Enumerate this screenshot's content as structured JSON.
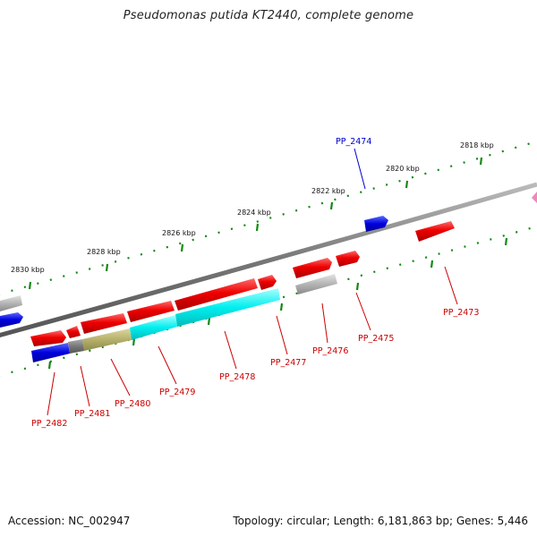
{
  "title": "Pseudomonas putida KT2440, complete genome",
  "footer": {
    "accession": "Accession: NC_002947",
    "summary": "Topology: circular; Length: 6,181,863 bp; Genes: 5,446"
  },
  "scale_labels": [
    "2830 kbp",
    "2828 kbp",
    "2826 kbp",
    "2824 kbp",
    "2822 kbp",
    "2820 kbp",
    "2818 kbp"
  ],
  "gene_labels": {
    "PP_2474": "PP_2474",
    "PP_2473": "PP_2473",
    "PP_2475": "PP_2475",
    "PP_2476": "PP_2476",
    "PP_2477": "PP_2477",
    "PP_2478": "PP_2478",
    "PP_2479": "PP_2479",
    "PP_2480": "PP_2480",
    "PP_2481": "PP_2481",
    "PP_2482": "PP_2482"
  },
  "colors": {
    "cds": "#ee0000",
    "cds_light": "#ff7777",
    "blue": "#0000dd",
    "cyan": "#00eeee",
    "grey": "#aaaaaa",
    "olive": "#b5b06a",
    "darkgrey": "#777777",
    "pink": "#ee88bb",
    "tick": "#118811",
    "backbone": "#888888"
  }
}
